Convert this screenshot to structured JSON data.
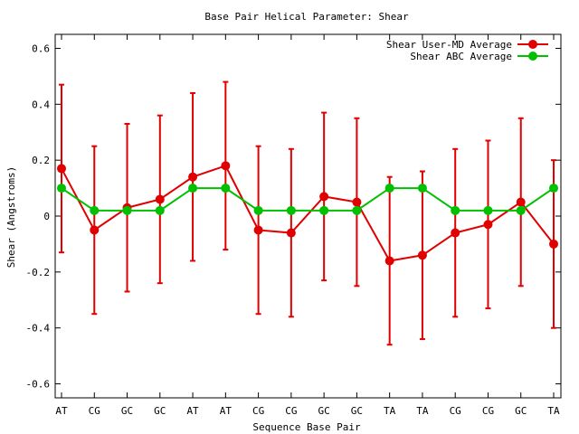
{
  "chart_data": {
    "type": "line",
    "title": "Base Pair Helical Parameter: Shear",
    "xlabel": "Sequence Base Pair",
    "ylabel": "Shear (Angstroms)",
    "categories": [
      "AT",
      "CG",
      "GC",
      "GC",
      "AT",
      "AT",
      "CG",
      "CG",
      "GC",
      "GC",
      "TA",
      "TA",
      "CG",
      "CG",
      "GC",
      "TA"
    ],
    "ylim": [
      -0.65,
      0.65
    ],
    "yticks": [
      -0.6,
      -0.4,
      -0.2,
      0,
      0.2,
      0.4,
      0.6
    ],
    "ytick_labels": [
      "-0.6",
      "-0.4",
      "-0.2",
      "0",
      "0.2",
      "0.4",
      "0.6"
    ],
    "grid": false,
    "legend_position": "top-right",
    "series": [
      {
        "name": "Shear User-MD Average",
        "color": "#e00000",
        "values": [
          0.17,
          -0.05,
          0.03,
          0.06,
          0.14,
          0.18,
          -0.05,
          -0.06,
          0.07,
          0.05,
          -0.16,
          -0.14,
          -0.06,
          -0.03,
          0.05,
          -0.1
        ],
        "error": [
          0.3,
          0.3,
          0.3,
          0.3,
          0.3,
          0.3,
          0.3,
          0.3,
          0.3,
          0.3,
          0.3,
          0.3,
          0.3,
          0.3,
          0.3,
          0.3
        ]
      },
      {
        "name": "Shear ABC Average",
        "color": "#00c000",
        "values": [
          0.1,
          0.02,
          0.02,
          0.02,
          0.1,
          0.1,
          0.02,
          0.02,
          0.02,
          0.02,
          0.1,
          0.1,
          0.02,
          0.02,
          0.02,
          0.1
        ]
      }
    ]
  }
}
